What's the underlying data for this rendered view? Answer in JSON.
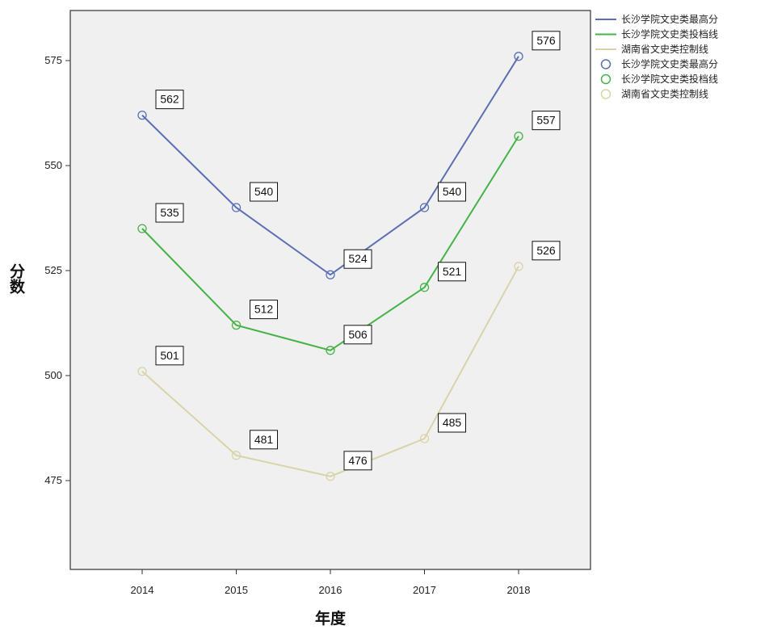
{
  "chart_data": {
    "type": "line",
    "title": "",
    "xlabel": "年度",
    "ylabel": "分数",
    "x": [
      2014,
      2015,
      2016,
      2017,
      2018
    ],
    "yticks": [
      475,
      500,
      525,
      550,
      575
    ],
    "ylim": [
      450,
      583
    ],
    "grid": false,
    "legend_position": "right",
    "series": [
      {
        "name": "长沙学院文史类最高分",
        "values": [
          562,
          540,
          524,
          540,
          576
        ],
        "color": "#5b6fb5"
      },
      {
        "name": "长沙学院文史类投档线",
        "values": [
          535,
          512,
          506,
          521,
          557
        ],
        "color": "#44b347"
      },
      {
        "name": "湖南省文史类控制线",
        "values": [
          501,
          481,
          476,
          485,
          526
        ],
        "color": "#d8d4a8"
      }
    ]
  }
}
